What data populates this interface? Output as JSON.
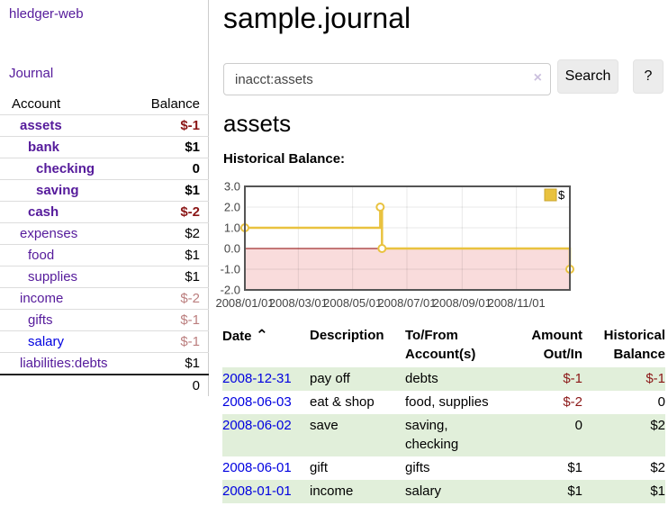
{
  "colors": {
    "link_purple": "#551a9b",
    "link_blue": "#0000e0",
    "negative_strong": "#8b1717",
    "negative_muted": "#bb7e7e",
    "row_green": "#e1efda"
  },
  "sidebar": {
    "app_title": "hledger-web",
    "nav": [
      {
        "label": "Journal"
      }
    ],
    "accounts_table": {
      "headers": {
        "account": "Account",
        "balance": "Balance"
      },
      "rows": [
        {
          "account": "assets",
          "balance": "$-1",
          "depth": 1,
          "bold": true,
          "neg": "strong"
        },
        {
          "account": "bank",
          "balance": "$1",
          "depth": 2,
          "bold": true
        },
        {
          "account": "checking",
          "balance": "0",
          "depth": 3,
          "bold": true
        },
        {
          "account": "saving",
          "balance": "$1",
          "depth": 3,
          "bold": true
        },
        {
          "account": "cash",
          "balance": "$-2",
          "depth": 2,
          "bold": true,
          "neg": "strong"
        },
        {
          "account": "expenses",
          "balance": "$2",
          "depth": 1
        },
        {
          "account": "food",
          "balance": "$1",
          "depth": 2
        },
        {
          "account": "supplies",
          "balance": "$1",
          "depth": 2
        },
        {
          "account": "income",
          "balance": "$-2",
          "depth": 1,
          "neg": "muted"
        },
        {
          "account": "gifts",
          "balance": "$-1",
          "depth": 2,
          "neg": "muted"
        },
        {
          "account": "salary",
          "balance": "$-1",
          "depth": 2,
          "neg": "muted",
          "link_color": "blue"
        },
        {
          "account": "liabilities:debts",
          "balance": "$1",
          "depth": 1
        }
      ],
      "total": "0"
    }
  },
  "header": {
    "title": "sample.journal"
  },
  "search": {
    "value": "inacct:assets",
    "clear_icon": "×",
    "button_label": "Search",
    "help_label": "?"
  },
  "account_page": {
    "title": "assets",
    "chart_label": "Historical Balance:"
  },
  "chart_data": {
    "type": "line",
    "step": true,
    "title": "Historical Balance",
    "legend": "$",
    "series": [
      {
        "name": "$",
        "color": "#e9c23f",
        "points": [
          [
            "2008-01-01",
            1
          ],
          [
            "2008-06-01",
            2
          ],
          [
            "2008-06-03",
            0
          ],
          [
            "2008-12-31",
            -1
          ]
        ]
      }
    ],
    "x_ticks": [
      "2008/01/01",
      "2008/03/01",
      "2008/05/01",
      "2008/07/01",
      "2008/09/01",
      "2008/11/01"
    ],
    "y_ticks": [
      "3.0",
      "2.0",
      "1.0",
      "0.0",
      "-1.0",
      "-2.0"
    ],
    "ylim": [
      -2,
      3
    ],
    "x_start": "2008-01-01",
    "x_end": "2008-12-31",
    "grid": true,
    "legend_position": "top-right",
    "negative_region_color": "#f9dcdc",
    "zero_line_color": "#8b0000",
    "grid_color": "rgba(0,0,0,0.09)",
    "border_color": "#555555",
    "marker": "open-circle"
  },
  "register_table": {
    "headers": [
      "Date",
      "Description",
      "To/From Account(s)",
      "Amount Out/In",
      "Historical Balance"
    ],
    "sort_icon": "⌃",
    "rows": [
      {
        "date": "2008-12-31",
        "description": "pay off",
        "accounts": "debts",
        "amount": "$-1",
        "balance": "$-1",
        "amount_neg": true,
        "balance_neg": true,
        "green": true
      },
      {
        "date": "2008-06-03",
        "description": "eat & shop",
        "accounts": "food, supplies",
        "amount": "$-2",
        "balance": "0",
        "amount_neg": true,
        "balance_neg": false,
        "green": false
      },
      {
        "date": "2008-06-02",
        "description": "save",
        "accounts": "saving, checking",
        "amount": "0",
        "balance": "$2",
        "amount_neg": false,
        "balance_neg": false,
        "green": true
      },
      {
        "date": "2008-06-01",
        "description": "gift",
        "accounts": "gifts",
        "amount": "$1",
        "balance": "$2",
        "amount_neg": false,
        "balance_neg": false,
        "green": false
      },
      {
        "date": "2008-01-01",
        "description": "income",
        "accounts": "salary",
        "amount": "$1",
        "balance": "$1",
        "amount_neg": false,
        "balance_neg": false,
        "green": true
      }
    ]
  }
}
